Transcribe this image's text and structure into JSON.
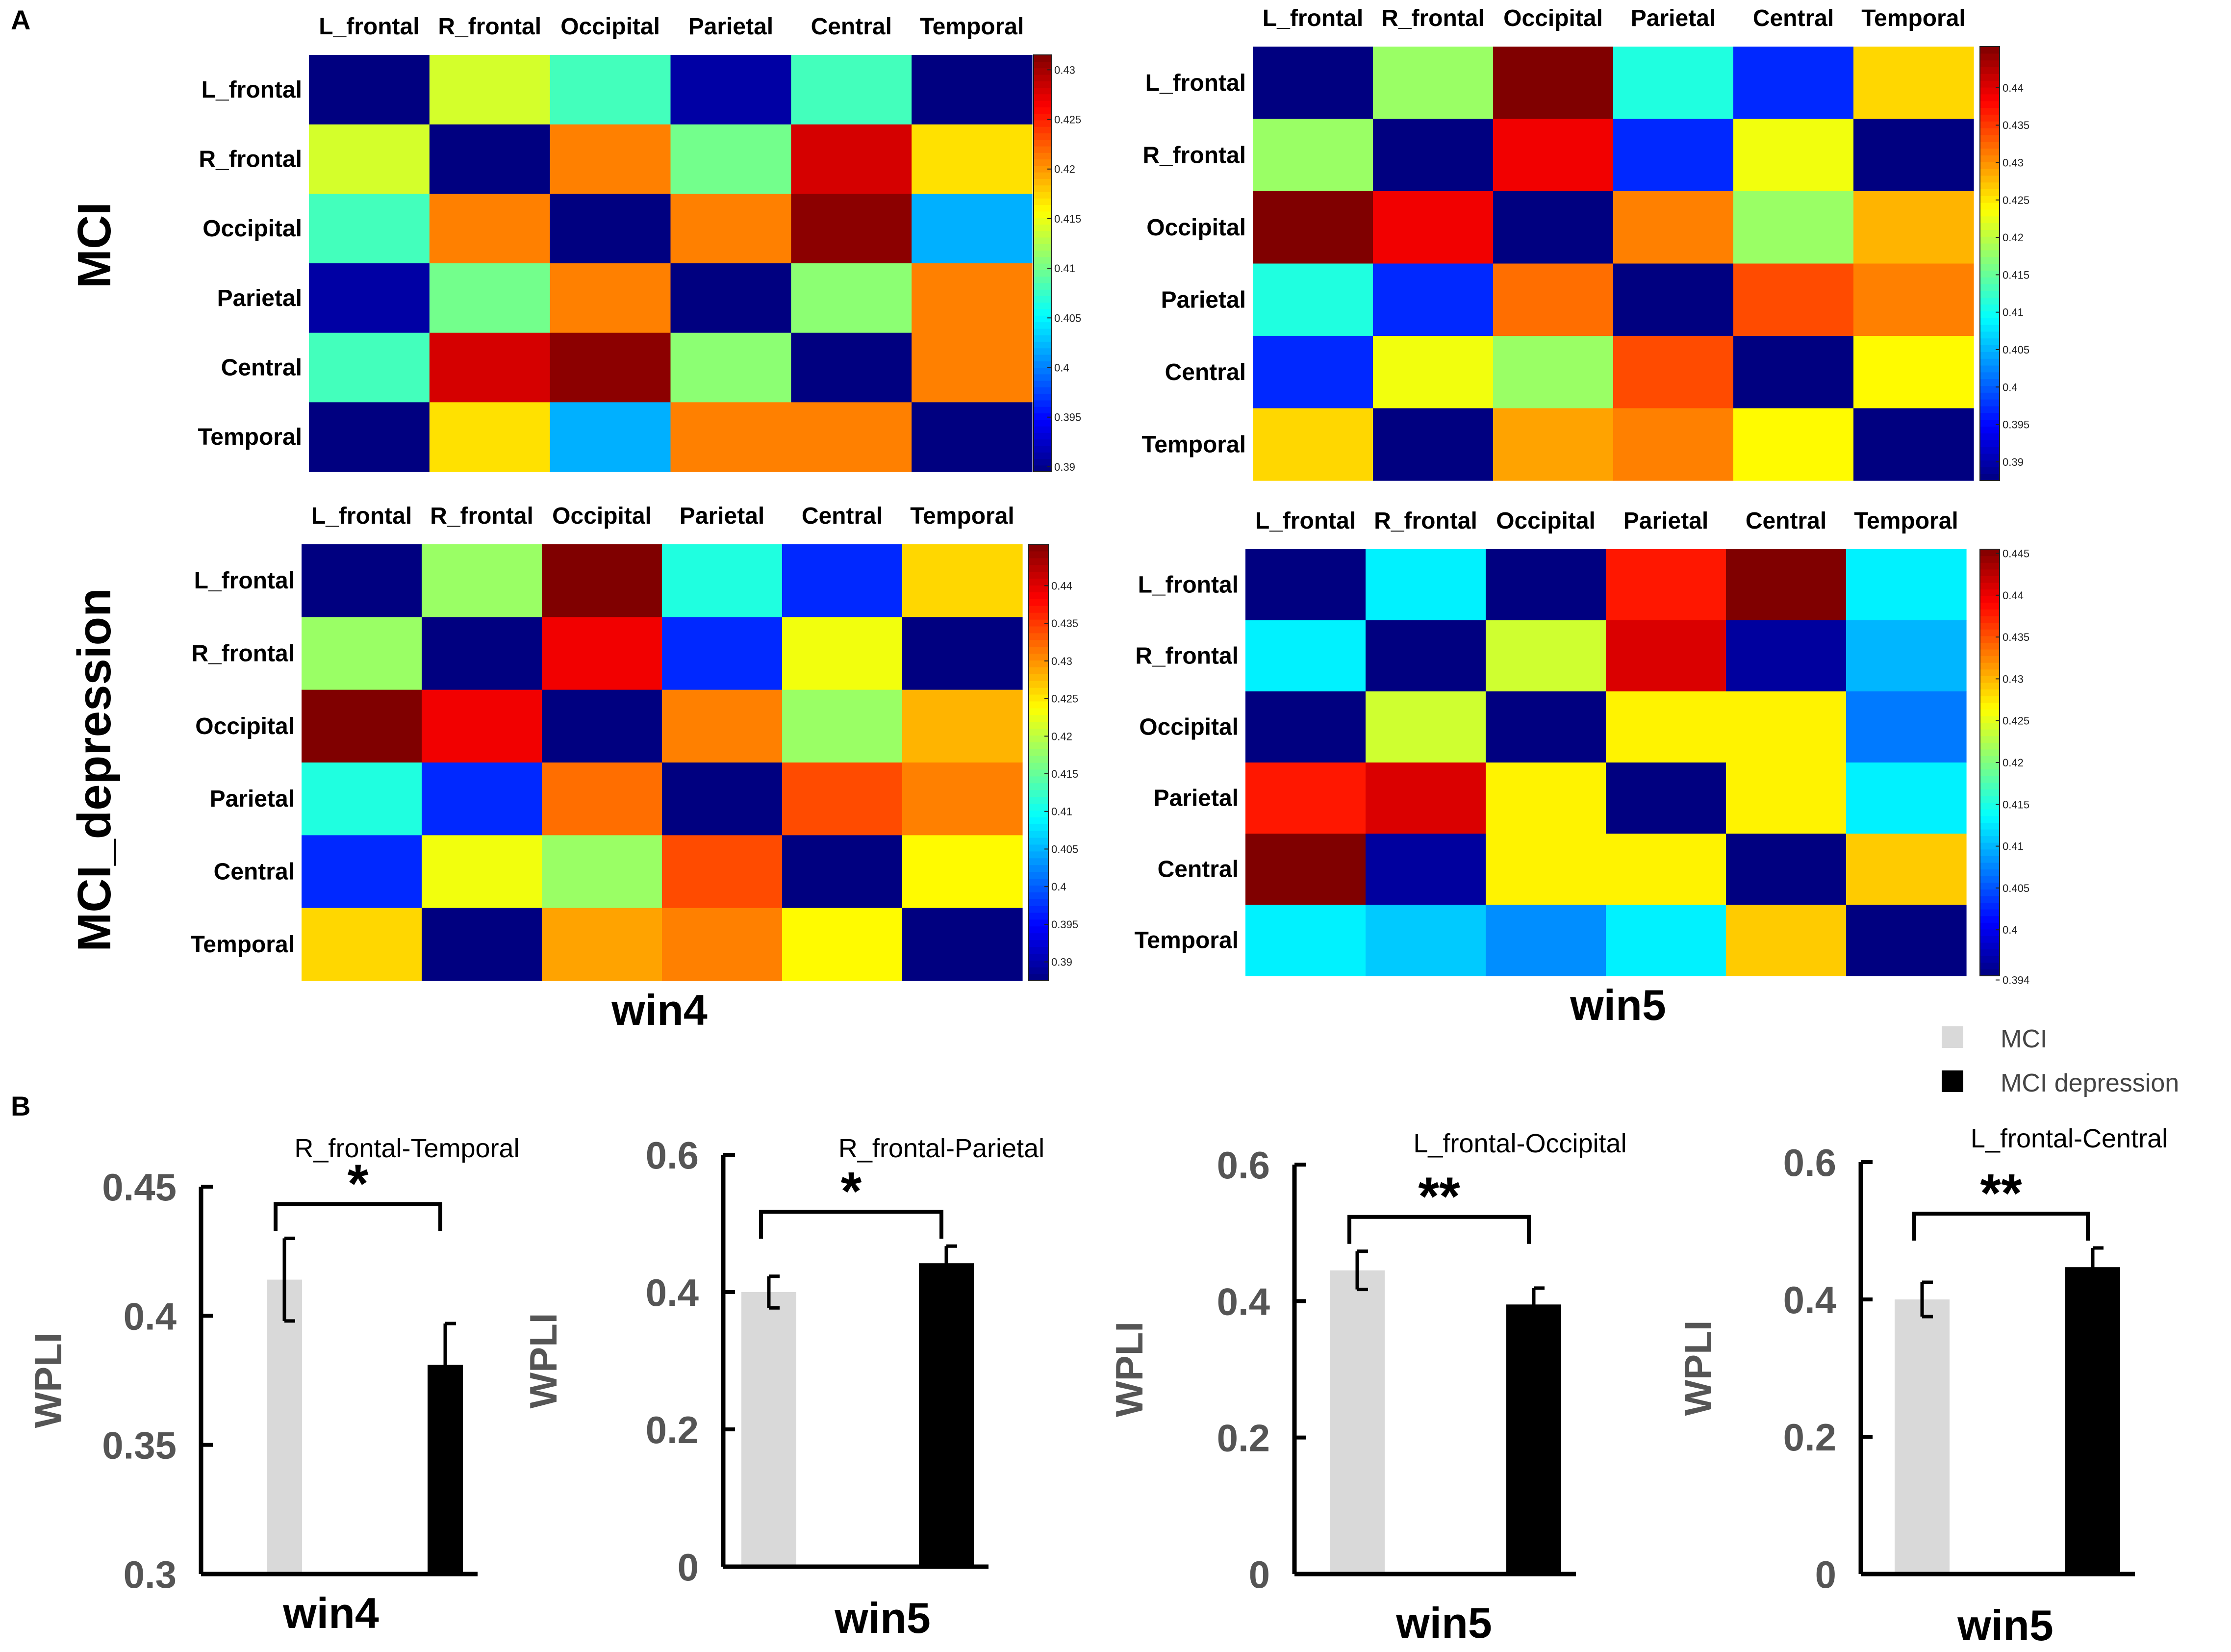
{
  "panels": {
    "a_label": "A",
    "b_label": "B"
  },
  "heatmaps": {
    "regions": [
      "L_frontal",
      "R_frontal",
      "Occipital",
      "Parietal",
      "Central",
      "Temporal"
    ],
    "row_labels": [
      "MCI",
      "MCI_depression"
    ],
    "column_labels": [
      "win4",
      "win5"
    ],
    "colormap": "jet"
  },
  "chart_data": [
    {
      "type": "heatmap",
      "group": "MCI",
      "window": "win4",
      "x_labels": [
        "L_frontal",
        "R_frontal",
        "Occipital",
        "Parietal",
        "Central",
        "Temporal"
      ],
      "y_labels": [
        "L_frontal",
        "R_frontal",
        "Occipital",
        "Parietal",
        "Central",
        "Temporal"
      ],
      "zlim": [
        0.3895,
        0.4315
      ],
      "colorbar_ticks": [
        "0.39",
        "0.395",
        "0.4",
        "0.405",
        "0.41",
        "0.415",
        "0.42",
        "0.425",
        "0.43"
      ],
      "values": [
        [
          0.3895,
          0.414,
          0.408,
          0.391,
          0.408,
          0.3895
        ],
        [
          0.414,
          0.3895,
          0.421,
          0.41,
          0.428,
          0.417
        ],
        [
          0.408,
          0.421,
          0.3895,
          0.421,
          0.431,
          0.402
        ],
        [
          0.391,
          0.41,
          0.421,
          0.3895,
          0.411,
          0.421
        ],
        [
          0.408,
          0.428,
          0.431,
          0.411,
          0.3895,
          0.421
        ],
        [
          0.3895,
          0.417,
          0.402,
          0.421,
          0.421,
          0.3895
        ]
      ]
    },
    {
      "type": "heatmap",
      "group": "MCI",
      "window": "win5",
      "x_labels": [
        "L_frontal",
        "R_frontal",
        "Occipital",
        "Parietal",
        "Central",
        "Temporal"
      ],
      "y_labels": [
        "L_frontal",
        "R_frontal",
        "Occipital",
        "Parietal",
        "Central",
        "Temporal"
      ],
      "zlim": [
        0.3875,
        0.4455
      ],
      "colorbar_ticks": [
        "0.39",
        "0.395",
        "0.4",
        "0.405",
        "0.41",
        "0.415",
        "0.42",
        "0.425",
        "0.43",
        "0.435",
        "0.44"
      ],
      "values": [
        [
          0.3875,
          0.418,
          0.4455,
          0.411,
          0.397,
          0.426
        ],
        [
          0.418,
          0.3875,
          0.439,
          0.397,
          0.423,
          0.3875
        ],
        [
          0.4455,
          0.439,
          0.3875,
          0.431,
          0.418,
          0.428
        ],
        [
          0.411,
          0.397,
          0.432,
          0.3875,
          0.434,
          0.431
        ],
        [
          0.397,
          0.423,
          0.418,
          0.434,
          0.3875,
          0.424
        ],
        [
          0.426,
          0.3875,
          0.429,
          0.431,
          0.424,
          0.3875
        ]
      ]
    },
    {
      "type": "heatmap",
      "group": "MCI_depression",
      "window": "win4",
      "x_labels": [
        "L_frontal",
        "R_frontal",
        "Occipital",
        "Parietal",
        "Central",
        "Temporal"
      ],
      "y_labels": [
        "L_frontal",
        "R_frontal",
        "Occipital",
        "Parietal",
        "Central",
        "Temporal"
      ],
      "zlim": [
        0.3875,
        0.4455
      ],
      "colorbar_ticks": [
        "0.39",
        "0.395",
        "0.4",
        "0.405",
        "0.41",
        "0.415",
        "0.42",
        "0.425",
        "0.43",
        "0.435",
        "0.44"
      ],
      "values": [
        [
          0.3875,
          0.418,
          0.4455,
          0.411,
          0.397,
          0.426
        ],
        [
          0.418,
          0.3875,
          0.439,
          0.397,
          0.423,
          0.3875
        ],
        [
          0.4455,
          0.439,
          0.3875,
          0.431,
          0.418,
          0.428
        ],
        [
          0.411,
          0.397,
          0.432,
          0.3875,
          0.434,
          0.431
        ],
        [
          0.397,
          0.423,
          0.418,
          0.434,
          0.3875,
          0.424
        ],
        [
          0.426,
          0.3875,
          0.429,
          0.431,
          0.424,
          0.3875
        ]
      ]
    },
    {
      "type": "heatmap",
      "group": "MCI_depression",
      "window": "win5",
      "x_labels": [
        "L_frontal",
        "R_frontal",
        "Occipital",
        "Parietal",
        "Central",
        "Temporal"
      ],
      "y_labels": [
        "L_frontal",
        "R_frontal",
        "Occipital",
        "Parietal",
        "Central",
        "Temporal"
      ],
      "zlim": [
        0.3945,
        0.4455
      ],
      "colorbar_ticks": [
        "0.394",
        "0.4",
        "0.405",
        "0.41",
        "0.415",
        "0.42",
        "0.425",
        "0.43",
        "0.435",
        "0.44",
        "0.445"
      ],
      "values": [
        [
          0.3945,
          0.413,
          0.3945,
          0.438,
          0.4455,
          0.413
        ],
        [
          0.413,
          0.3945,
          0.424,
          0.441,
          0.396,
          0.41
        ],
        [
          0.3945,
          0.424,
          0.3945,
          0.427,
          0.427,
          0.407
        ],
        [
          0.438,
          0.441,
          0.427,
          0.3945,
          0.427,
          0.413
        ],
        [
          0.4455,
          0.396,
          0.427,
          0.427,
          0.3945,
          0.429
        ],
        [
          0.413,
          0.411,
          0.408,
          0.413,
          0.429,
          0.3945
        ]
      ]
    },
    {
      "type": "bar",
      "title": "R_frontal-Temporal",
      "xlabel": "win4",
      "ylabel": "WPLI",
      "ylim": [
        0.3,
        0.45
      ],
      "yticks": [
        "0.3",
        "0.35",
        "0.4",
        "0.45"
      ],
      "series": [
        {
          "name": "MCI",
          "value": 0.414,
          "error": 0.016,
          "color": "#d9d9d9"
        },
        {
          "name": "MCI depression",
          "value": 0.381,
          "error": 0.016,
          "color": "#000000"
        }
      ],
      "significance": "*"
    },
    {
      "type": "bar",
      "title": "R_frontal-Parietal",
      "xlabel": "win5",
      "ylabel": "WPLI",
      "ylim": [
        0,
        0.6
      ],
      "yticks": [
        "0",
        "0.2",
        "0.4",
        "0.6"
      ],
      "series": [
        {
          "name": "MCI",
          "value": 0.4,
          "error": 0.023,
          "color": "#d9d9d9"
        },
        {
          "name": "MCI depression",
          "value": 0.442,
          "error": 0.025,
          "color": "#000000"
        }
      ],
      "significance": "*"
    },
    {
      "type": "bar",
      "title": "L_frontal-Occipital",
      "xlabel": "win5",
      "ylabel": "WPLI",
      "ylim": [
        0,
        0.6
      ],
      "yticks": [
        "0",
        "0.2",
        "0.4",
        "0.6"
      ],
      "series": [
        {
          "name": "MCI",
          "value": 0.445,
          "error": 0.028,
          "color": "#d9d9d9"
        },
        {
          "name": "MCI depression",
          "value": 0.395,
          "error": 0.024,
          "color": "#000000"
        }
      ],
      "significance": "**"
    },
    {
      "type": "bar",
      "title": "L_frontal-Central",
      "xlabel": "win5",
      "ylabel": "WPLI",
      "ylim": [
        0,
        0.6
      ],
      "yticks": [
        "0",
        "0.2",
        "0.4",
        "0.6"
      ],
      "series": [
        {
          "name": "MCI",
          "value": 0.4,
          "error": 0.025,
          "color": "#d9d9d9"
        },
        {
          "name": "MCI depression",
          "value": 0.447,
          "error": 0.028,
          "color": "#000000"
        }
      ],
      "significance": "**"
    }
  ],
  "legend": {
    "items": [
      {
        "label": "MCI",
        "color": "#d9d9d9"
      },
      {
        "label": "MCI depression",
        "color": "#000000"
      }
    ]
  }
}
